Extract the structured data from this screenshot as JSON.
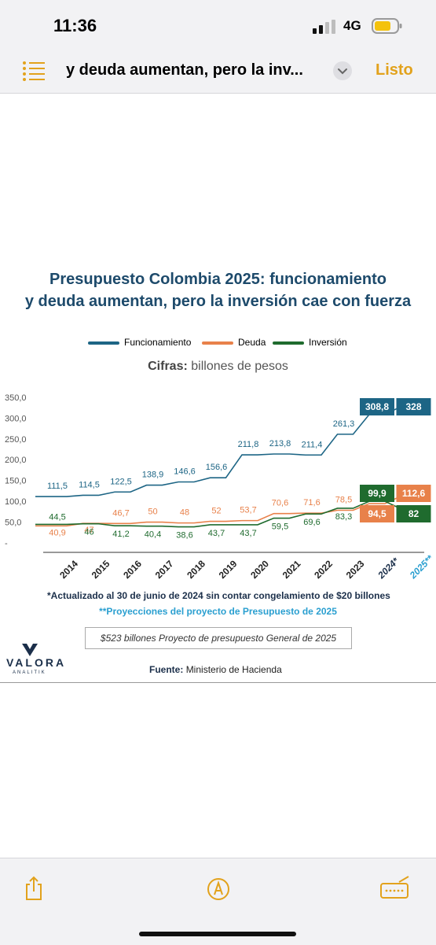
{
  "status_bar": {
    "time": "11:36",
    "network": "4G"
  },
  "nav": {
    "title": "y deuda aumentan, pero la inv...",
    "done_label": "Listo"
  },
  "chart_heading": {
    "line1": "Presupuesto Colombia 2025: funcionamiento",
    "line2": "y deuda aumentan, pero la inversión cae con fuerza"
  },
  "legend": {
    "funcionamiento": "Funcionamiento",
    "deuda": "Deuda",
    "inversion": "Inversión"
  },
  "units": {
    "label": "Cifras:",
    "text": "billones de pesos"
  },
  "notes": {
    "actualizado": "*Actualizado al 30 de junio de 2024 sin contar congelamiento de $20 billones",
    "proyecciones": "**Proyecciones del proyecto de Presupuesto de 2025",
    "box": "$523 billones Proyecto de presupuesto General de 2025"
  },
  "logo": {
    "name": "VALORA",
    "sub": "ANALITIK"
  },
  "source": {
    "label": "Fuente:",
    "text": "Ministerio de Hacienda"
  },
  "colors": {
    "funcionamiento": "#1d6585",
    "deuda": "#e8814a",
    "inversion": "#1f6b2e",
    "accent": "#e2a21c",
    "projection": "#2a9fd0"
  },
  "icons": {
    "list": "list-icon",
    "chevron": "chevron-down-icon",
    "share": "share-icon",
    "markup": "markup-pen-icon",
    "keyboard": "keyboard-icon",
    "signal": "signal-icon",
    "battery": "battery-icon"
  },
  "chart_data": {
    "type": "line",
    "categories": [
      "2014",
      "2015",
      "2016",
      "2017",
      "2018",
      "2019",
      "2020",
      "2021",
      "2022",
      "2023",
      "2024*",
      "2025**"
    ],
    "series": [
      {
        "name": "Funcionamiento",
        "values": [
          111.5,
          114.5,
          122.5,
          138.9,
          146.6,
          156.6,
          211.8,
          213.8,
          211.4,
          261.3,
          308.8,
          328
        ],
        "labels": [
          "111,5",
          "114,5",
          "122,5",
          "138,9",
          "146,6",
          "156,6",
          "211,8",
          "213,8",
          "211,4",
          "261,3",
          "308,8",
          "328"
        ]
      },
      {
        "name": "Deuda",
        "values": [
          40.9,
          47,
          46.7,
          50,
          48,
          52,
          53.7,
          70.6,
          71.6,
          78.5,
          94.5,
          112.6
        ],
        "labels": [
          "40,9",
          "47",
          "46,7",
          "50",
          "48",
          "52",
          "53,7",
          "70,6",
          "71,6",
          "78,5",
          "94,5",
          "112,6"
        ]
      },
      {
        "name": "Inversión",
        "values": [
          44.5,
          46,
          41.2,
          40.4,
          38.6,
          43.7,
          43.7,
          59.5,
          69.6,
          83.3,
          99.9,
          82
        ],
        "labels": [
          "44,5",
          "46",
          "41,2",
          "40,4",
          "38,6",
          "43,7",
          "43,7",
          "59,5",
          "69,6",
          "83,3",
          "99,9",
          "82"
        ]
      }
    ],
    "y_ticks": [
      "350,0",
      "300,0",
      "250,0",
      "200,0",
      "150,0",
      "100,0",
      "50,0",
      "-"
    ],
    "ylim": [
      0,
      350
    ]
  }
}
